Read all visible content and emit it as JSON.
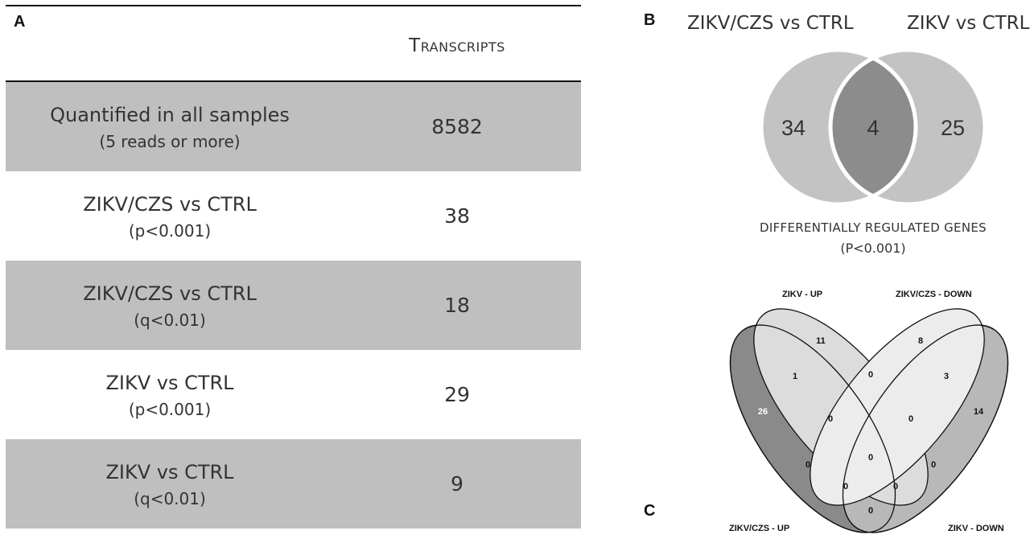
{
  "panel_a": {
    "letter": "A",
    "column_header": "Transcripts",
    "rows": [
      {
        "label": "Quantified in all samples",
        "sub": "(5 reads or more)",
        "value": "8582"
      },
      {
        "label": "ZIKV/CZS vs CTRL",
        "sub": "(p<0.001)",
        "value": "38"
      },
      {
        "label": "ZIKV/CZS vs CTRL",
        "sub": "(q<0.01)",
        "value": "18"
      },
      {
        "label": "ZIKV vs CTRL",
        "sub": "(p<0.001)",
        "value": "29"
      },
      {
        "label": "ZIKV vs CTRL",
        "sub": "(q<0.01)",
        "value": "9"
      }
    ]
  },
  "panel_b": {
    "letter": "B",
    "left_title": "ZIKV/CZS vs CTRL",
    "right_title": "ZIKV vs CTRL",
    "left_only": "34",
    "overlap": "4",
    "right_only": "25",
    "caption_line1": "DIFFERENTIALLY REGULATED GENES",
    "caption_line2": "(P<0.001)",
    "colors": {
      "outer": "#c3c3c3",
      "overlap": "#8c8c8c",
      "border": "#ffffff"
    }
  },
  "panel_c": {
    "letter": "C",
    "sets": {
      "zikv_up": "ZIKV - UP",
      "zikvczs_down": "ZIKV/CZS - DOWN",
      "zikvczs_up": "ZIKV/CZS - UP",
      "zikv_down": "ZIKV - DOWN"
    },
    "counts": {
      "only_zikvczs_up": "26",
      "only_zikv_up": "11",
      "only_zikvczs_down": "8",
      "only_zikv_down": "14",
      "zikvczs_up_and_zikv_up": "1",
      "zikv_up_and_zikvczs_down": "0",
      "zikvczs_down_and_zikv_down": "3",
      "upper_left_inner": "0",
      "upper_right_inner": "0",
      "center": "0",
      "mid_left": "0",
      "mid_right": "0",
      "lower_left": "0",
      "lower_right": "0",
      "bottom": "0"
    },
    "colors": {
      "zikvczs_up": "#8a8a8a",
      "zikv_up": "#dcdcdc",
      "zikvczs_down": "#ececec",
      "zikv_down": "#b8b8b8"
    }
  }
}
